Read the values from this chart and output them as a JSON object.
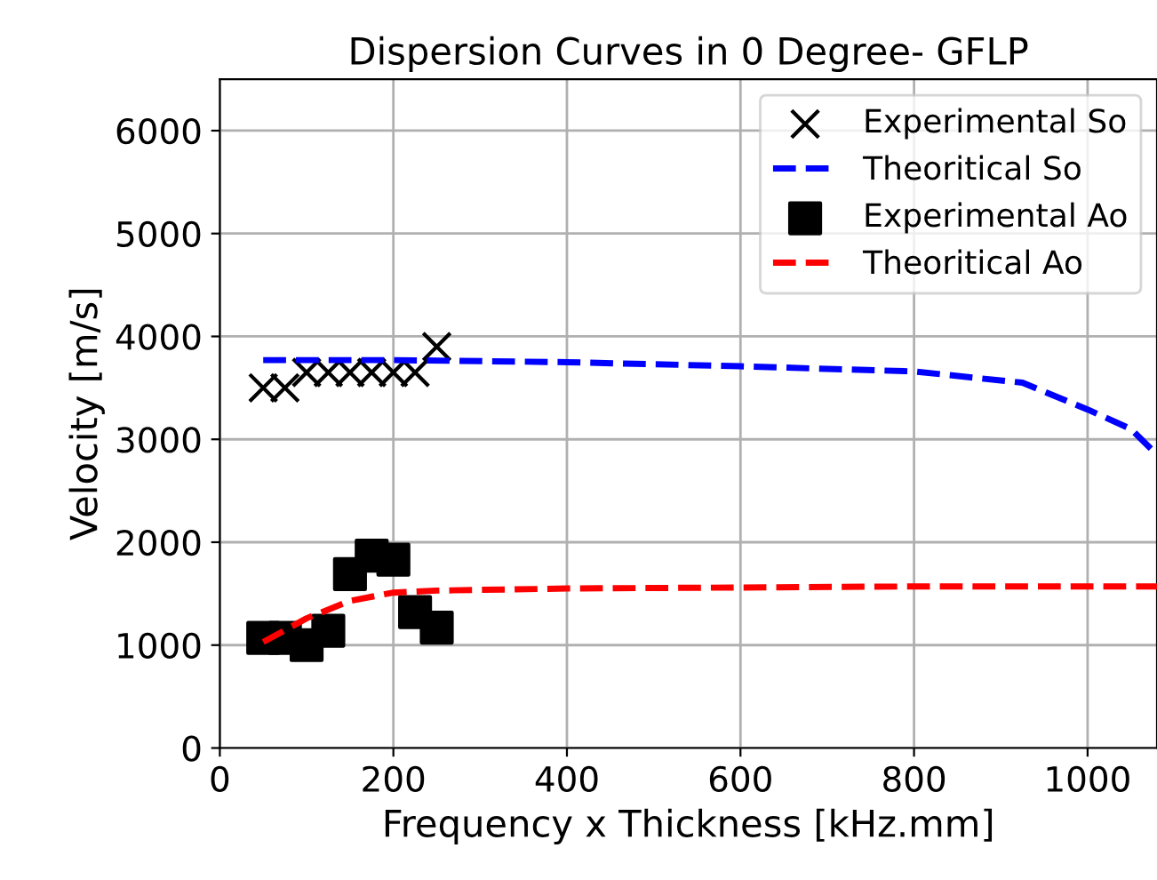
{
  "chart_data": {
    "type": "scatter",
    "title": "Dispersion Curves in 0 Degree- GFLP",
    "xlabel": "Frequency x Thickness [kHz.mm]",
    "ylabel": "Velocity [m/s]",
    "xlim": [
      0,
      1080
    ],
    "ylim": [
      0,
      6500
    ],
    "xticks": [
      0,
      200,
      400,
      600,
      800,
      1000
    ],
    "yticks": [
      0,
      1000,
      2000,
      3000,
      4000,
      5000,
      6000
    ],
    "grid": true,
    "legend": "top right",
    "series": [
      {
        "name": "Experimental So",
        "marker": "cross",
        "color": "#000000",
        "x": [
          50,
          75,
          100,
          125,
          150,
          175,
          200,
          225,
          250
        ],
        "values": [
          3500,
          3500,
          3650,
          3650,
          3650,
          3650,
          3650,
          3650,
          3900
        ]
      },
      {
        "name": "Theoritical So",
        "type": "line",
        "line_style": "dashed",
        "color": "#0000ff",
        "x": [
          50,
          200,
          400,
          600,
          800,
          925,
          1000,
          1050,
          1080
        ],
        "values": [
          3770,
          3770,
          3750,
          3710,
          3660,
          3550,
          3290,
          3100,
          2850
        ]
      },
      {
        "name": "Experimental Ao",
        "marker": "square",
        "color": "#000000",
        "x": [
          50,
          75,
          100,
          125,
          150,
          175,
          200,
          225,
          250
        ],
        "values": [
          1070,
          1070,
          1000,
          1140,
          1690,
          1870,
          1830,
          1320,
          1170
        ]
      },
      {
        "name": "Theoritical Ao",
        "type": "line",
        "line_style": "dashed",
        "color": "#ff0000",
        "x": [
          50,
          100,
          150,
          200,
          250,
          400,
          600,
          800,
          1080
        ],
        "values": [
          1030,
          1260,
          1430,
          1510,
          1530,
          1550,
          1560,
          1570,
          1570
        ]
      }
    ]
  }
}
